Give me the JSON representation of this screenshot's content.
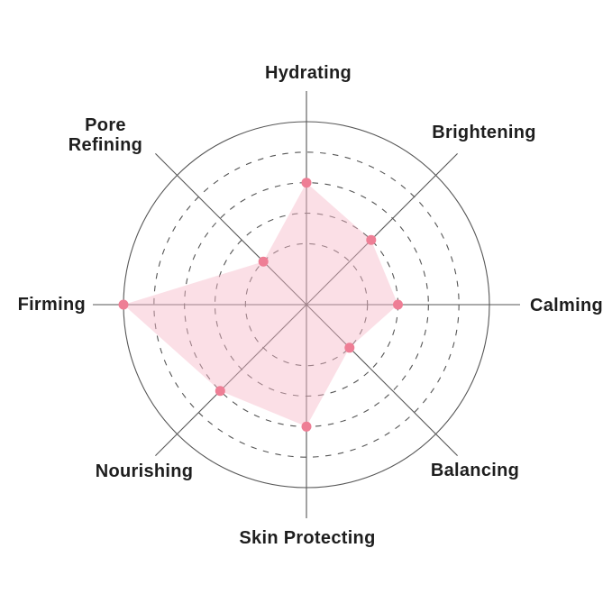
{
  "chart_data": {
    "type": "radar",
    "title": "",
    "max": 6,
    "ring_levels": [
      2,
      3,
      4,
      5,
      6
    ],
    "grid": {
      "inner_ring_style": "dashed",
      "outer_ring_style": "solid",
      "axis_lines": true,
      "legend": "none"
    },
    "axes": [
      {
        "label": "Hydrating",
        "value": 4
      },
      {
        "label": "Brightening",
        "value": 3
      },
      {
        "label": "Calming",
        "value": 3
      },
      {
        "label": "Balancing",
        "value": 2
      },
      {
        "label": "Skin Protecting",
        "value": 4
      },
      {
        "label": "Nourishing",
        "value": 4
      },
      {
        "label": "Firming",
        "value": 6
      },
      {
        "label": "Pore Refining",
        "value": 2
      }
    ],
    "colors": {
      "area_fill": "#f6b8c8",
      "area_fill_opacity": 0.45,
      "point": "#ee7e95",
      "grid_line": "#565656",
      "label_text": "#1e1e1e",
      "background": "#ffffff"
    }
  }
}
